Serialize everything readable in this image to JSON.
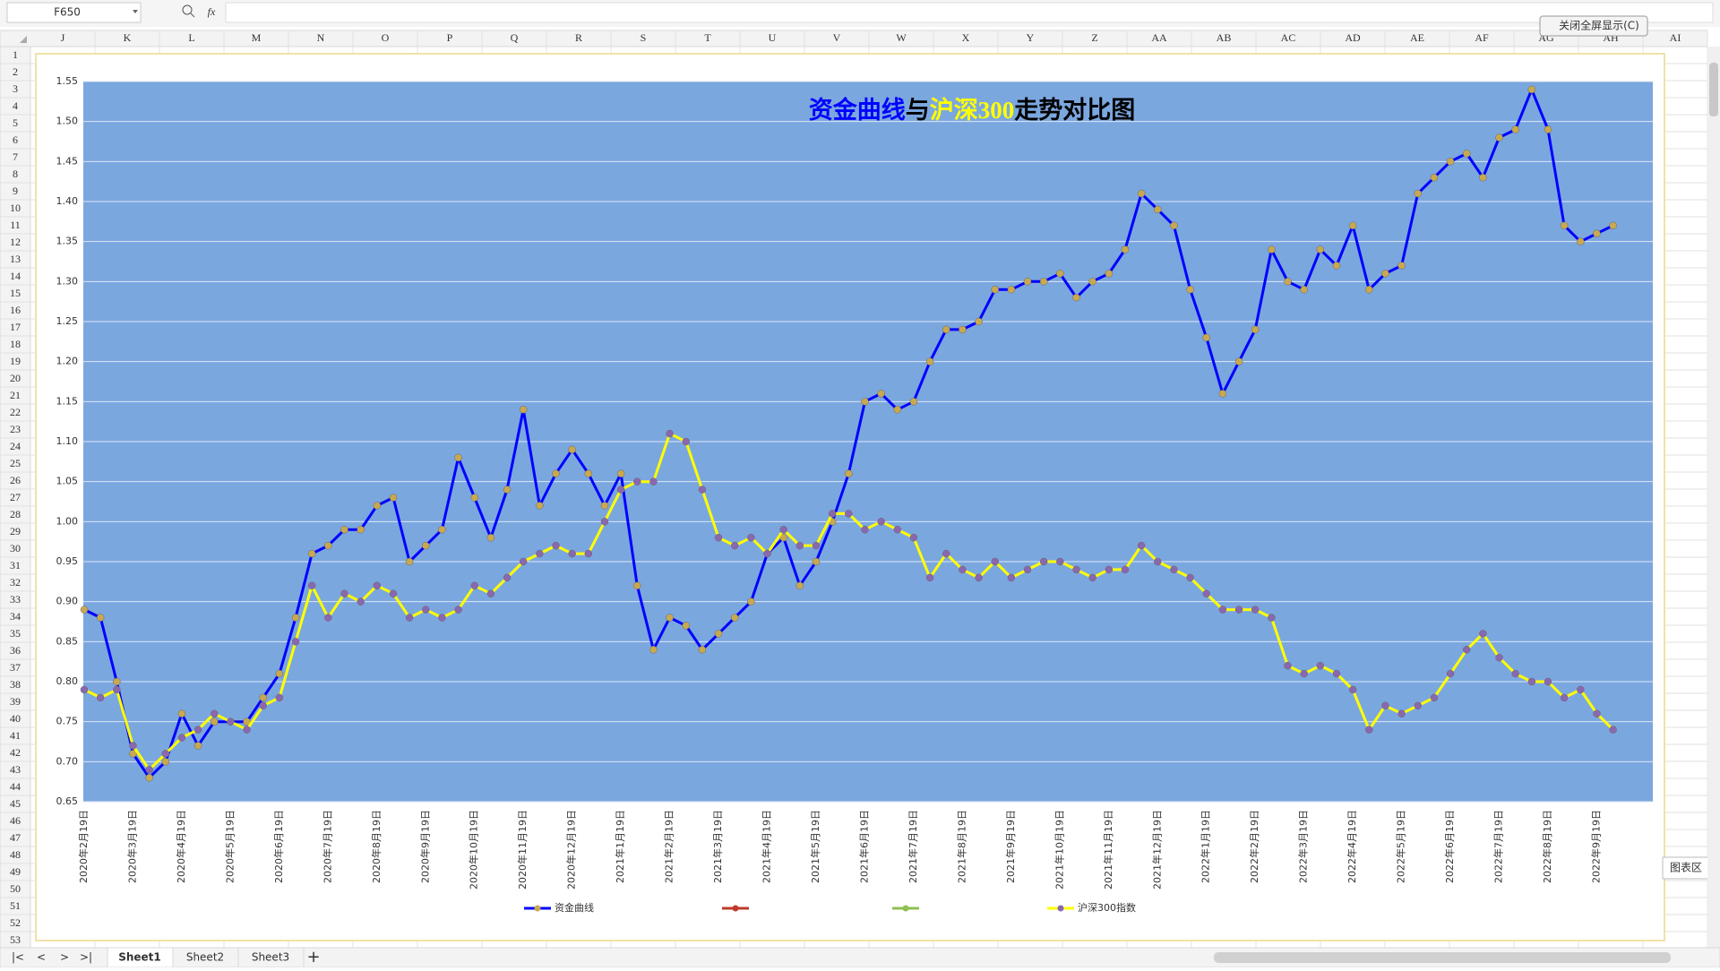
{
  "ui": {
    "name_box": "F650",
    "formula_icon": "fx",
    "close_button": "关闭全屏显示(C)",
    "tooltip": "图表区",
    "columns": [
      "J",
      "K",
      "L",
      "M",
      "N",
      "O",
      "P",
      "Q",
      "R",
      "S",
      "T",
      "U",
      "V",
      "W",
      "X",
      "Y",
      "Z",
      "AA",
      "AB",
      "AC",
      "AD",
      "AE",
      "AF",
      "AG",
      "AH",
      "AI"
    ],
    "rows": [
      1,
      2,
      3,
      4,
      5,
      6,
      7,
      8,
      9,
      10,
      11,
      12,
      13,
      14,
      15,
      16,
      17,
      18,
      19,
      20,
      21,
      22,
      23,
      24,
      25,
      26,
      27,
      28,
      29,
      30,
      31,
      32,
      33,
      34,
      35,
      36,
      37,
      38,
      39,
      40,
      41,
      42,
      43,
      44,
      45,
      46,
      47,
      48,
      49,
      50,
      51,
      52,
      53
    ],
    "sheet_tabs": [
      "Sheet1",
      "Sheet2",
      "Sheet3"
    ],
    "add_sheet": "+"
  },
  "chart_data": {
    "type": "line",
    "title_parts": [
      {
        "text": "资金曲线",
        "color": "#0000ff"
      },
      {
        "text": "与",
        "color": "#000000"
      },
      {
        "text": "沪深300",
        "color": "#ffff00"
      },
      {
        "text": "走势对比图",
        "color": "#000000"
      }
    ],
    "categories": [
      "2020年2月19日",
      null,
      null,
      "2020年3月19日",
      null,
      null,
      "2020年4月19日",
      null,
      null,
      "2020年5月19日",
      null,
      null,
      "2020年6月19日",
      null,
      null,
      "2020年7月19日",
      null,
      null,
      "2020年8月19日",
      null,
      null,
      "2020年9月19日",
      null,
      null,
      "2020年10月19日",
      null,
      null,
      "2020年11月19日",
      null,
      null,
      "2020年12月19日",
      null,
      null,
      "2021年1月19日",
      null,
      null,
      "2021年2月19日",
      null,
      null,
      "2021年3月19日",
      null,
      null,
      "2021年4月19日",
      null,
      null,
      "2021年5月19日",
      null,
      null,
      "2021年6月19日",
      null,
      null,
      "2021年7月19日",
      null,
      null,
      "2021年8月19日",
      null,
      null,
      "2021年9月19日",
      null,
      null,
      "2021年10月19日",
      null,
      null,
      "2021年11月19日",
      null,
      null,
      "2021年12月19日",
      null,
      null,
      "2022年1月19日",
      null,
      null,
      "2022年2月19日",
      null,
      null,
      "2022年3月19日",
      null,
      null,
      "2022年4月19日",
      null,
      null,
      "2022年5月19日",
      null,
      null,
      "2022年6月19日",
      null,
      null,
      "2022年7月19日",
      null,
      null,
      "2022年8月19日",
      null,
      null,
      "2022年9月19日",
      null
    ],
    "series": [
      {
        "name": "资金曲线",
        "color": "#0000ff",
        "marker_color": "#c8a850",
        "values": [
          0.89,
          0.88,
          0.8,
          0.71,
          0.68,
          0.7,
          0.76,
          0.72,
          0.75,
          0.75,
          0.75,
          0.78,
          0.81,
          0.88,
          0.96,
          0.97,
          0.99,
          0.99,
          1.02,
          1.03,
          0.95,
          0.97,
          0.99,
          1.08,
          1.03,
          0.98,
          1.04,
          1.14,
          1.02,
          1.06,
          1.09,
          1.06,
          1.02,
          1.06,
          0.92,
          0.84,
          0.88,
          0.87,
          0.84,
          0.86,
          0.88,
          0.9,
          0.96,
          0.98,
          0.92,
          0.95,
          1.0,
          1.06,
          1.15,
          1.16,
          1.14,
          1.15,
          1.2,
          1.24,
          1.24,
          1.25,
          1.29,
          1.29,
          1.3,
          1.3,
          1.31,
          1.28,
          1.3,
          1.31,
          1.34,
          1.41,
          1.39,
          1.37,
          1.29,
          1.23,
          1.16,
          1.2,
          1.24,
          1.34,
          1.3,
          1.29,
          1.34,
          1.32,
          1.37,
          1.29,
          1.31,
          1.32,
          1.41,
          1.43,
          1.45,
          1.46,
          1.43,
          1.48,
          1.49,
          1.54,
          1.49,
          1.37,
          1.35,
          1.36,
          1.37
        ]
      },
      {
        "name": "沪深300指数",
        "color": "#ffff00",
        "marker_color": "#8a68b0",
        "values": [
          0.79,
          0.78,
          0.79,
          0.72,
          0.69,
          0.71,
          0.73,
          0.74,
          0.76,
          0.75,
          0.74,
          0.77,
          0.78,
          0.85,
          0.92,
          0.88,
          0.91,
          0.9,
          0.92,
          0.91,
          0.88,
          0.89,
          0.88,
          0.89,
          0.92,
          0.91,
          0.93,
          0.95,
          0.96,
          0.97,
          0.96,
          0.96,
          1.0,
          1.04,
          1.05,
          1.05,
          1.11,
          1.1,
          1.04,
          0.98,
          0.97,
          0.98,
          0.96,
          0.99,
          0.97,
          0.97,
          1.01,
          1.01,
          0.99,
          1.0,
          0.99,
          0.98,
          0.93,
          0.96,
          0.94,
          0.93,
          0.95,
          0.93,
          0.94,
          0.95,
          0.95,
          0.94,
          0.93,
          0.94,
          0.94,
          0.97,
          0.95,
          0.94,
          0.93,
          0.91,
          0.89,
          0.89,
          0.89,
          0.88,
          0.82,
          0.81,
          0.82,
          0.81,
          0.79,
          0.74,
          0.77,
          0.76,
          0.77,
          0.78,
          0.81,
          0.84,
          0.86,
          0.83,
          0.81,
          0.8,
          0.8,
          0.78,
          0.79,
          0.76,
          0.74
        ]
      }
    ],
    "ylim": [
      0.65,
      1.55
    ],
    "yticks": [
      0.65,
      {
        "value": 0.7,
        "label": "0.70"
      },
      0.75,
      {
        "value": 0.8,
        "label": "0.80"
      },
      0.85,
      {
        "value": 0.9,
        "label": "0.90"
      },
      0.95,
      {
        "value": 1.0,
        "label": "1.00"
      },
      1.05,
      {
        "value": 1.1,
        "label": "1.10"
      },
      1.15,
      {
        "value": 1.2,
        "label": "1.20"
      },
      1.25,
      {
        "value": 1.3,
        "label": "1.30"
      },
      1.35,
      {
        "value": 1.4,
        "label": "1.40"
      },
      1.45,
      {
        "value": 1.5,
        "label": "1.50"
      },
      1.55
    ],
    "grid": true,
    "plot_color": "#7ba7df",
    "legend": "bottom"
  }
}
